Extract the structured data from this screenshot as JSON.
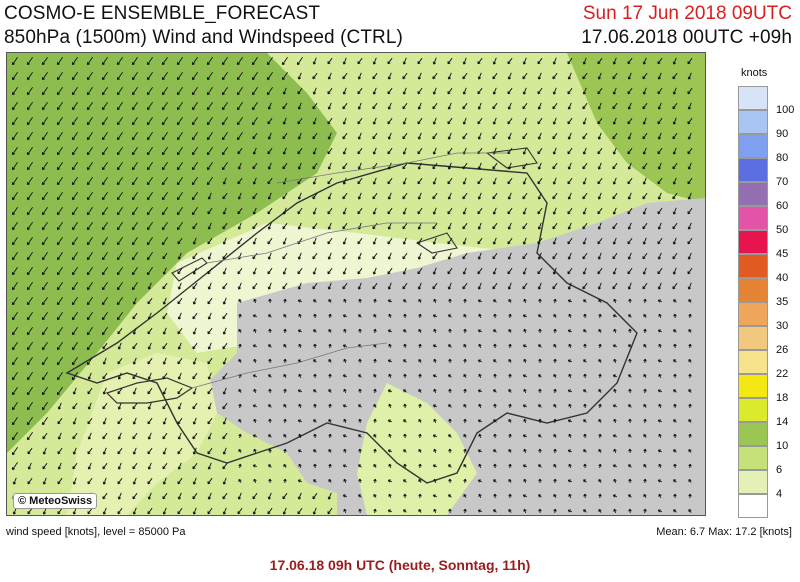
{
  "header": {
    "model": "COSMO-E ENSEMBLE_FORECAST",
    "field": "850hPa (1500m) Wind and Windspeed (CTRL)",
    "valid_time": "Sun 17 Jun 2018 09UTC",
    "run_time": "17.06.2018 00UTC +09h"
  },
  "copyright": "© MeteoSwiss",
  "legend": {
    "units": "knots",
    "levels": [
      {
        "label": "100",
        "color": "#d7e3f7"
      },
      {
        "label": "90",
        "color": "#a9c5f2"
      },
      {
        "label": "80",
        "color": "#7f9ff0"
      },
      {
        "label": "70",
        "color": "#5b6fe0"
      },
      {
        "label": "60",
        "color": "#9470b2"
      },
      {
        "label": "50",
        "color": "#e254a8"
      },
      {
        "label": "45",
        "color": "#e8144d"
      },
      {
        "label": "40",
        "color": "#e05a22"
      },
      {
        "label": "35",
        "color": "#e48434"
      },
      {
        "label": "30",
        "color": "#eea65a"
      },
      {
        "label": "26",
        "color": "#f2c77e"
      },
      {
        "label": "22",
        "color": "#f6e38c"
      },
      {
        "label": "18",
        "color": "#f3e714"
      },
      {
        "label": "14",
        "color": "#dcea2e"
      },
      {
        "label": "10",
        "color": "#9cc653"
      },
      {
        "label": "6",
        "color": "#c6e07a"
      },
      {
        "label": "4",
        "color": "#e3f1b7"
      },
      {
        "label": "",
        "color": "#ffffff"
      }
    ]
  },
  "footer": {
    "left": "wind speed [knots], level = 85000 Pa",
    "right": "Mean:   6.7 Max:   17.2 [knots]"
  },
  "validity_line": "17.06.18 09h UTC (heute, Sonntag, 11h)",
  "colors": {
    "dark_green": "#8dbd4f",
    "light_green": "#d4ea99",
    "yellow_green": "#e5f1b0",
    "terrain_grey": "#c8c8c8",
    "arrow": "#111111",
    "border_line": "#333333",
    "header_red": "#d81e1e",
    "validity_red": "#9a1c1c"
  }
}
